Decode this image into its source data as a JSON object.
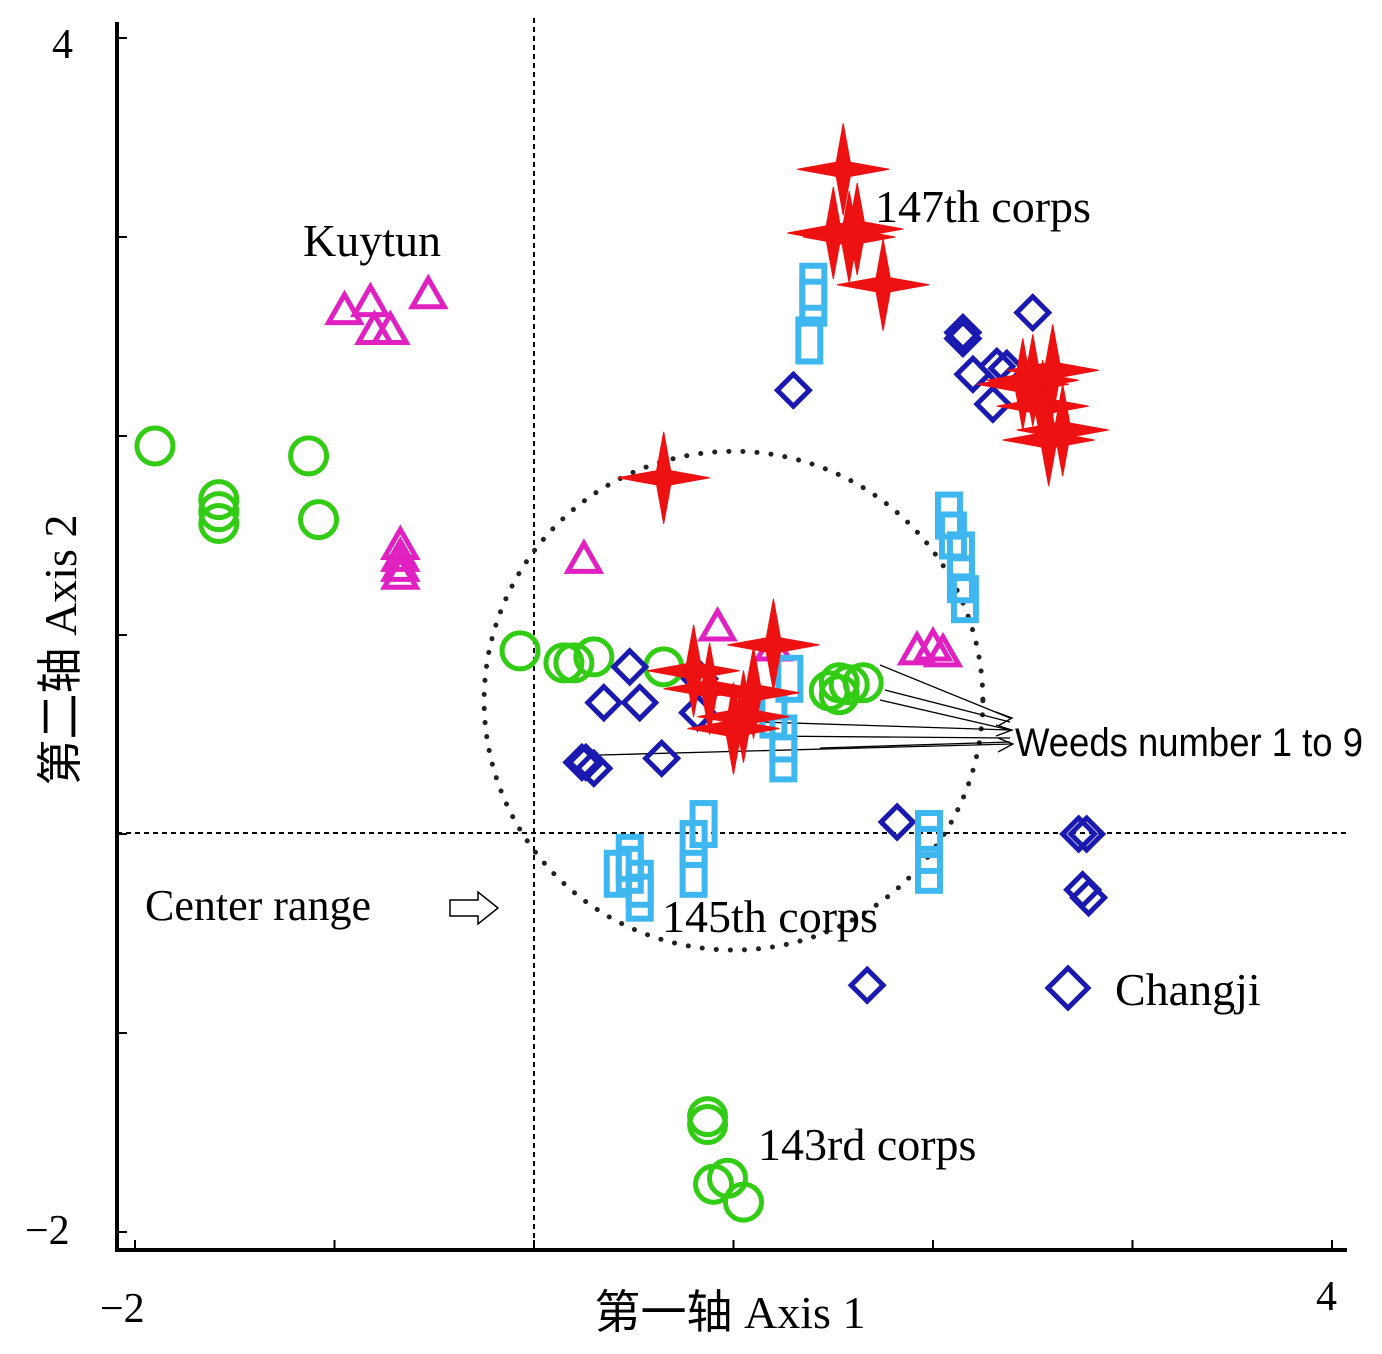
{
  "chart_data": {
    "type": "scatter",
    "xlabel": "第一轴  Axis 1",
    "ylabel": "第二轴  Axis 2",
    "xlim": [
      -2,
      4
    ],
    "ylim": [
      -2,
      4
    ],
    "x_tick_labels": [
      "−2",
      "4"
    ],
    "y_tick_labels": [
      "4",
      "−2"
    ],
    "reference_lines": {
      "vertical_x": 0,
      "horizontal_y": 0
    },
    "grid": false,
    "annotations": {
      "center_range": "Center range",
      "weeds": "Weeds number 1 to 9"
    },
    "center_circle": {
      "cx": 1.0,
      "cy": 0.67,
      "r": 1.25
    },
    "series": [
      {
        "name": "Kuytun",
        "marker": "triangle-open",
        "color": "#e020c0",
        "label_at": [
          -1.15,
          2.97
        ],
        "x": [
          -0.95,
          -0.82,
          -0.8,
          -0.72,
          -0.53,
          0.25,
          -0.67,
          -0.67,
          -0.67,
          -0.67,
          0.92,
          1.2,
          1.92,
          2.0,
          2.05
        ],
        "y": [
          2.63,
          2.67,
          2.53,
          2.53,
          2.71,
          1.38,
          1.45,
          1.39,
          1.34,
          1.3,
          1.04,
          0.94,
          0.92,
          0.94,
          0.91
        ]
      },
      {
        "name": "143rd corps",
        "marker": "circle-open",
        "color": "#33cc14",
        "label_at": [
          1.12,
          -1.57
        ],
        "x": [
          -1.9,
          -1.58,
          -1.58,
          -1.58,
          -1.13,
          -1.08,
          -0.07,
          0.15,
          0.2,
          0.3,
          0.65,
          1.48,
          1.53,
          1.53,
          1.58,
          1.65,
          0.87,
          0.87,
          0.9,
          0.97,
          1.05
        ],
        "y": [
          1.95,
          1.68,
          1.62,
          1.56,
          1.9,
          1.58,
          0.92,
          0.86,
          0.86,
          0.89,
          0.84,
          0.72,
          0.76,
          0.7,
          0.75,
          0.76,
          -1.42,
          -1.46,
          -1.76,
          -1.73,
          -1.85
        ]
      },
      {
        "name": "Changji",
        "marker": "diamond-open",
        "color": "#1a1ab0",
        "label_at": [
          1.9,
          -0.8
        ],
        "x": [
          2.15,
          2.15,
          2.2,
          2.32,
          2.37,
          2.5,
          2.3,
          1.3,
          0.48,
          0.35,
          0.53,
          0.83,
          0.82,
          0.24,
          0.3,
          0.26,
          0.64,
          1.82,
          2.73,
          2.77,
          2.75,
          2.78,
          1.67
        ],
        "y": [
          2.49,
          2.52,
          2.31,
          2.35,
          2.34,
          2.62,
          2.16,
          2.23,
          0.84,
          0.66,
          0.66,
          0.78,
          0.61,
          0.36,
          0.33,
          0.36,
          0.38,
          0.06,
          0.0,
          0.0,
          -0.28,
          -0.32,
          -0.76
        ]
      },
      {
        "name": "145th corps",
        "marker": "rect-open",
        "color": "#3eb6f0",
        "label_at": [
          0.65,
          -0.48
        ],
        "x": [
          0.53,
          0.53,
          0.42,
          0.48,
          0.48,
          0.8,
          0.8,
          0.85,
          1.28,
          1.2,
          1.25,
          1.25,
          1.38,
          1.4,
          1.4,
          2.08,
          2.1,
          2.14,
          2.14,
          2.16,
          1.98,
          1.98,
          1.98
        ],
        "y": [
          -0.32,
          -0.25,
          -0.2,
          -0.12,
          -0.18,
          -0.05,
          -0.2,
          0.05,
          0.78,
          0.6,
          0.48,
          0.38,
          2.48,
          2.75,
          2.67,
          1.6,
          1.5,
          1.4,
          1.28,
          1.18,
          0.0,
          -0.08,
          -0.18
        ]
      },
      {
        "name": "147th corps",
        "marker": "star4",
        "color": "#ee1111",
        "label_at": [
          1.72,
          3.12
        ],
        "x": [
          1.55,
          1.5,
          1.58,
          1.62,
          1.75,
          0.65,
          0.8,
          0.88,
          1.1,
          1.05,
          1.0,
          1.2,
          2.45,
          2.55,
          2.6,
          2.5,
          2.65,
          2.58
        ],
        "y": [
          3.34,
          3.02,
          3.0,
          3.04,
          2.76,
          1.79,
          0.82,
          0.73,
          0.71,
          0.59,
          0.53,
          0.95,
          2.26,
          2.15,
          2.33,
          2.28,
          2.03,
          1.98
        ]
      }
    ]
  }
}
